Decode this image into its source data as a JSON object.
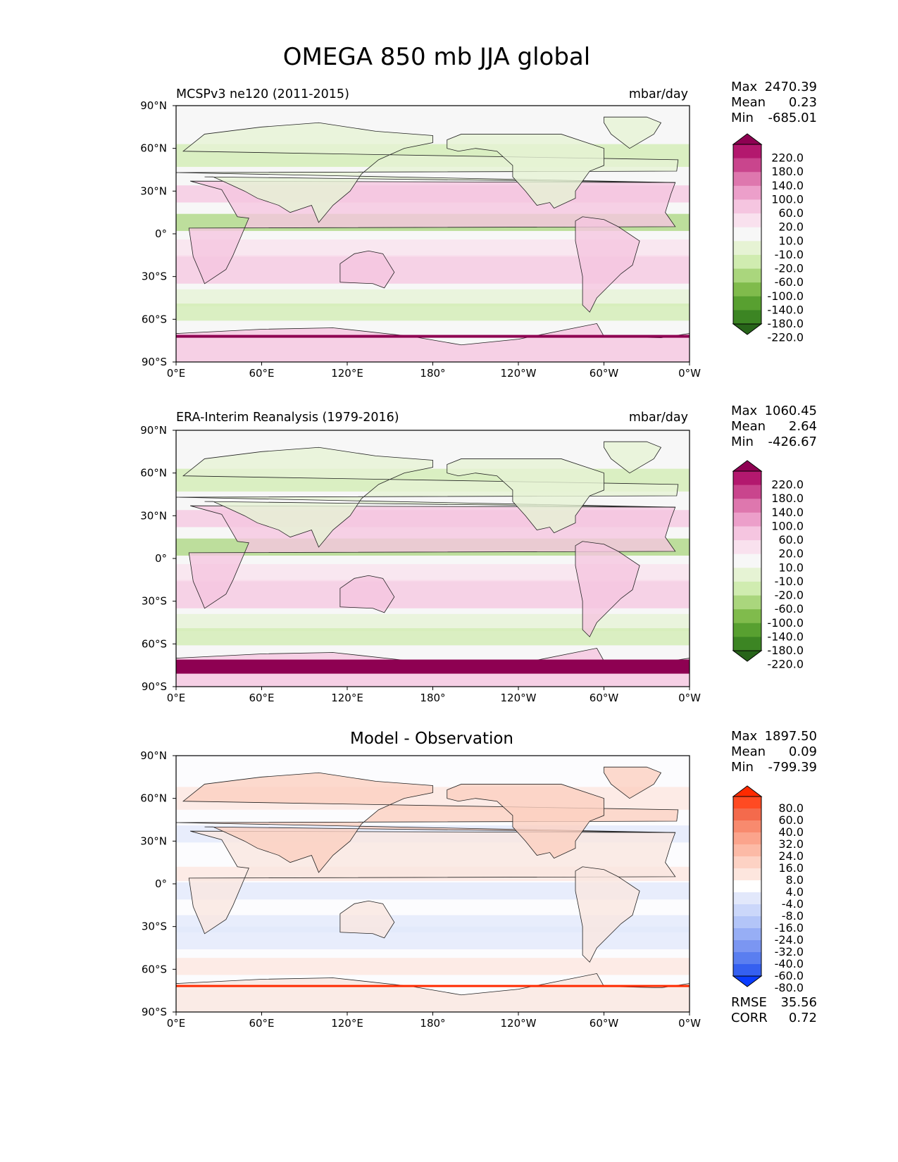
{
  "title": "OMEGA 850 mb JJA global",
  "chart_data": [
    {
      "type": "heatmap",
      "left_title": "MCSPv3 ne120 (2011-2015)",
      "units": "mbar/day",
      "stats": {
        "max_label": "Max",
        "max": "2470.39",
        "mean_label": "Mean",
        "mean": "0.23",
        "min_label": "Min",
        "min": "-685.01"
      },
      "colorbar": {
        "levels": [
          "220.0",
          "180.0",
          "140.0",
          "100.0",
          "60.0",
          "20.0",
          "10.0",
          "-10.0",
          "-20.0",
          "-60.0",
          "-100.0",
          "-140.0",
          "-180.0",
          "-220.0"
        ],
        "colors": [
          "#8e0152",
          "#b3186e",
          "#c9458d",
          "#de77ae",
          "#ec9fca",
          "#f5c5e0",
          "#f9e1ee",
          "#f7f7f7",
          "#e6f3d4",
          "#d0ecb0",
          "#aad67d",
          "#80bb4c",
          "#58a030",
          "#3c8523",
          "#276419"
        ]
      },
      "xticks": [
        "0°E",
        "60°E",
        "120°E",
        "180°",
        "120°W",
        "60°W",
        "0°W"
      ],
      "yticks": [
        "90°N",
        "60°N",
        "30°N",
        "0°",
        "30°S",
        "60°S",
        "90°S"
      ],
      "xlim": [
        0,
        360
      ],
      "ylim": [
        -90,
        90
      ]
    },
    {
      "type": "heatmap",
      "left_title": "ERA-Interim Reanalysis (1979-2016)",
      "units": "mbar/day",
      "stats": {
        "max_label": "Max",
        "max": "1060.45",
        "mean_label": "Mean",
        "mean": "2.64",
        "min_label": "Min",
        "min": "-426.67"
      },
      "colorbar": {
        "levels": [
          "220.0",
          "180.0",
          "140.0",
          "100.0",
          "60.0",
          "20.0",
          "10.0",
          "-10.0",
          "-20.0",
          "-60.0",
          "-100.0",
          "-140.0",
          "-180.0",
          "-220.0"
        ],
        "colors": [
          "#8e0152",
          "#b3186e",
          "#c9458d",
          "#de77ae",
          "#ec9fca",
          "#f5c5e0",
          "#f9e1ee",
          "#f7f7f7",
          "#e6f3d4",
          "#d0ecb0",
          "#aad67d",
          "#80bb4c",
          "#58a030",
          "#3c8523",
          "#276419"
        ]
      },
      "xticks": [
        "0°E",
        "60°E",
        "120°E",
        "180°",
        "120°W",
        "60°W",
        "0°W"
      ],
      "yticks": [
        "90°N",
        "60°N",
        "30°N",
        "0°",
        "30°S",
        "60°S",
        "90°S"
      ],
      "xlim": [
        0,
        360
      ],
      "ylim": [
        -90,
        90
      ]
    },
    {
      "type": "heatmap",
      "center_title": "Model - Observation",
      "stats": {
        "max_label": "Max",
        "max": "1897.50",
        "mean_label": "Mean",
        "mean": "0.09",
        "min_label": "Min",
        "min": "-799.39"
      },
      "colorbar": {
        "levels": [
          "80.0",
          "60.0",
          "40.0",
          "32.0",
          "24.0",
          "16.0",
          "8.0",
          "4.0",
          "-4.0",
          "-8.0",
          "-16.0",
          "-24.0",
          "-32.0",
          "-40.0",
          "-60.0",
          "-80.0"
        ],
        "colors": [
          "#ff2a00",
          "#ff4a22",
          "#f46a4c",
          "#f88a6e",
          "#fba48c",
          "#fcbaa6",
          "#fdd2c4",
          "#fde6de",
          "#ffffff",
          "#e2e8fb",
          "#cbd7fa",
          "#b3c5f8",
          "#97aef5",
          "#7b96f2",
          "#5a7ef0",
          "#3560f0",
          "#0a3cff"
        ]
      },
      "rmse_label": "RMSE",
      "rmse": "35.56",
      "corr_label": "CORR",
      "corr": "0.72",
      "xticks": [
        "0°E",
        "60°E",
        "120°E",
        "180°",
        "120°W",
        "60°W",
        "0°W"
      ],
      "yticks": [
        "90°N",
        "60°N",
        "30°N",
        "0°",
        "30°S",
        "60°S",
        "90°S"
      ],
      "xlim": [
        0,
        360
      ],
      "ylim": [
        -90,
        90
      ]
    }
  ]
}
